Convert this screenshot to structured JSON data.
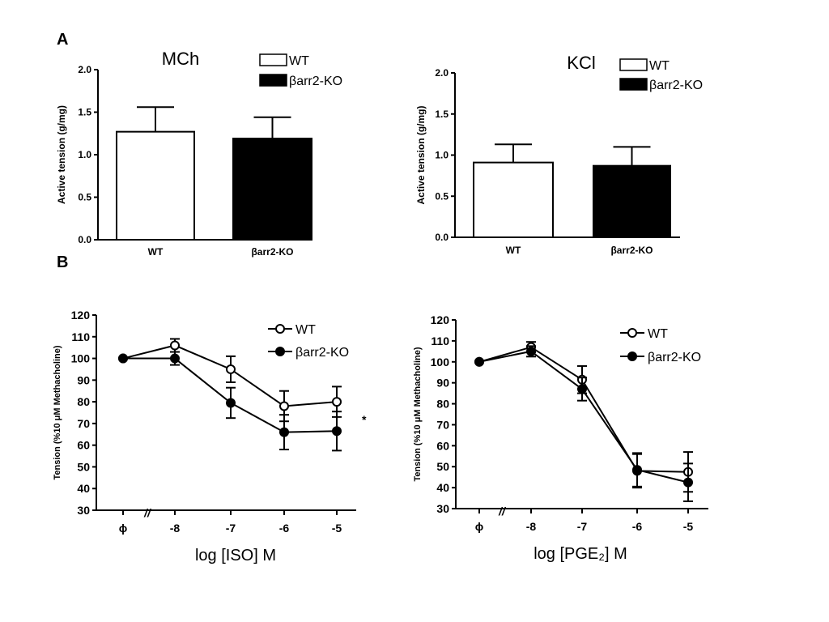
{
  "panel_labels": {
    "a": "A",
    "b": "B"
  },
  "axis_break": "//",
  "chart_data": [
    {
      "type": "bar",
      "title": "MCh",
      "ylabel": "Active tension (g/mg)",
      "xlabel": "",
      "ylim": [
        0,
        2.0
      ],
      "yticks": [
        "0.0",
        "0.5",
        "1.0",
        "1.5",
        "2.0"
      ],
      "categories": [
        "WT",
        "βarr2-KO"
      ],
      "values": [
        1.27,
        1.19
      ],
      "errors": [
        0.29,
        0.25
      ],
      "fills": [
        "#ffffff",
        "#000000"
      ],
      "legend": [
        {
          "label": "WT",
          "fill": "#ffffff"
        },
        {
          "label": "βarr2-KO",
          "fill": "#000000"
        }
      ],
      "legend_position": "top-right"
    },
    {
      "type": "bar",
      "title": "KCl",
      "ylabel": "Active tension (g/mg)",
      "xlabel": "",
      "ylim": [
        0,
        2.0
      ],
      "yticks": [
        "0.0",
        "0.5",
        "1.0",
        "1.5",
        "2.0"
      ],
      "categories": [
        "WT",
        "βarr2-KO"
      ],
      "values": [
        0.91,
        0.87
      ],
      "errors": [
        0.22,
        0.23
      ],
      "fills": [
        "#ffffff",
        "#000000"
      ],
      "legend": [
        {
          "label": "WT",
          "fill": "#ffffff"
        },
        {
          "label": "βarr2-KO",
          "fill": "#000000"
        }
      ],
      "legend_position": "top-right"
    },
    {
      "type": "line",
      "title": "",
      "ylabel": "Tension (%10 μM Methacholine)",
      "xlabel": "log [ISO] M",
      "ylim": [
        30,
        120
      ],
      "yticks": [
        "30",
        "40",
        "50",
        "60",
        "70",
        "80",
        "90",
        "100",
        "110",
        "120"
      ],
      "x_labels": [
        "ϕ",
        "-8",
        "-7",
        "-6",
        "-5"
      ],
      "series": [
        {
          "name": "WT",
          "marker": "open-circle",
          "values": [
            100,
            106,
            95,
            78,
            80
          ],
          "errors": [
            1,
            3,
            6,
            7,
            7
          ]
        },
        {
          "name": "βarr2-KO",
          "marker": "filled-circle",
          "values": [
            100,
            100,
            79.5,
            66,
            66.5
          ],
          "errors": [
            1,
            3,
            7,
            8,
            9
          ]
        }
      ],
      "annotation": "*",
      "legend_position": "top-right"
    },
    {
      "type": "line",
      "title": "",
      "ylabel": "Tension (%10 μM Methacholine)",
      "xlabel": "log [PGE₂] M",
      "ylim": [
        30,
        120
      ],
      "yticks": [
        "30",
        "40",
        "50",
        "60",
        "70",
        "80",
        "90",
        "100",
        "110",
        "120"
      ],
      "x_labels": [
        "ϕ",
        "-8",
        "-7",
        "-6",
        "-5"
      ],
      "series": [
        {
          "name": "WT",
          "marker": "open-circle",
          "values": [
            100,
            107,
            91.5,
            48,
            47.5
          ],
          "errors": [
            1,
            2.5,
            6.5,
            8,
            9.5
          ]
        },
        {
          "name": "βarr2-KO",
          "marker": "filled-circle",
          "values": [
            100,
            105,
            87,
            48.5,
            42.5
          ],
          "errors": [
            1,
            2.5,
            5.5,
            8,
            9
          ]
        }
      ],
      "legend_position": "top-right"
    }
  ]
}
